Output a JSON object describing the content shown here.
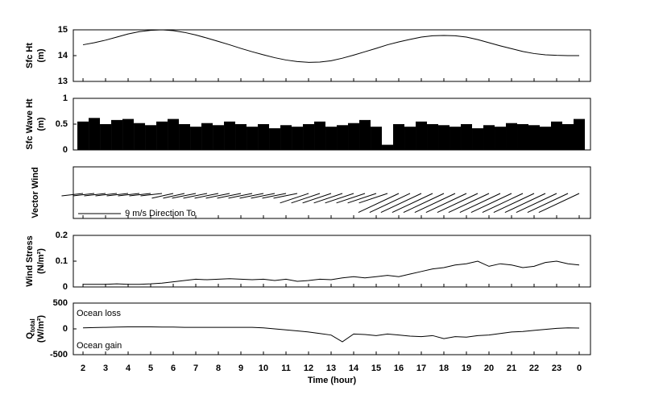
{
  "chart_data": [
    {
      "type": "line",
      "ylabel": "Sfc Ht",
      "ylabel_units": "(m)",
      "color": "#000000",
      "x": [
        2,
        2.5,
        3,
        3.5,
        4,
        4.5,
        5,
        5.5,
        6,
        6.5,
        7,
        7.5,
        8,
        8.5,
        9,
        9.5,
        10,
        10.5,
        11,
        11.5,
        12,
        12.5,
        13,
        13.5,
        14,
        14.5,
        15,
        15.5,
        16,
        16.5,
        17,
        17.5,
        18,
        18.5,
        19,
        19.5,
        20,
        20.5,
        21,
        21.5,
        22,
        22.5,
        23,
        23.5,
        24
      ],
      "values": [
        14.42,
        14.5,
        14.6,
        14.72,
        14.84,
        14.93,
        14.98,
        15.0,
        14.97,
        14.9,
        14.8,
        14.68,
        14.55,
        14.42,
        14.28,
        14.15,
        14.03,
        13.92,
        13.83,
        13.77,
        13.74,
        13.75,
        13.8,
        13.9,
        14.02,
        14.15,
        14.28,
        14.42,
        14.53,
        14.63,
        14.72,
        14.77,
        14.78,
        14.77,
        14.72,
        14.62,
        14.5,
        14.38,
        14.27,
        14.16,
        14.08,
        14.03,
        14.01,
        14.0,
        14.0
      ],
      "xlim": [
        1.57,
        24.5
      ],
      "ylim": [
        13,
        15
      ],
      "yticks": [
        13,
        14,
        15
      ]
    },
    {
      "type": "bar",
      "ylabel": "Sfc Wave Ht",
      "ylabel_units": "(m)",
      "color": "#000000",
      "x": [
        2,
        2.5,
        3,
        3.5,
        4,
        4.5,
        5,
        5.5,
        6,
        6.5,
        7,
        7.5,
        8,
        8.5,
        9,
        9.5,
        10,
        10.5,
        11,
        11.5,
        12,
        12.5,
        13,
        13.5,
        14,
        14.5,
        15,
        15.5,
        16,
        16.5,
        17,
        17.5,
        18,
        18.5,
        19,
        19.5,
        20,
        20.5,
        21,
        21.5,
        22,
        22.5,
        23,
        23.5,
        24
      ],
      "values": [
        0.55,
        0.62,
        0.5,
        0.58,
        0.6,
        0.52,
        0.48,
        0.55,
        0.6,
        0.5,
        0.45,
        0.52,
        0.48,
        0.55,
        0.5,
        0.45,
        0.5,
        0.42,
        0.48,
        0.45,
        0.5,
        0.55,
        0.45,
        0.48,
        0.52,
        0.58,
        0.45,
        0.1,
        0.5,
        0.45,
        0.55,
        0.5,
        0.48,
        0.45,
        0.5,
        0.42,
        0.48,
        0.45,
        0.52,
        0.5,
        0.48,
        0.45,
        0.55,
        0.5,
        0.6
      ],
      "xlim": [
        1.57,
        24.5
      ],
      "ylim": [
        0,
        1
      ],
      "yticks": [
        0,
        0.5,
        1
      ]
    },
    {
      "type": "vector",
      "ylabel": "Vector Wind",
      "color": "#000000",
      "x": [
        2,
        2.5,
        3,
        3.5,
        4,
        4.5,
        5,
        5.5,
        6,
        6.5,
        7,
        7.5,
        8,
        8.5,
        9,
        9.5,
        10,
        10.5,
        11,
        11.5,
        12,
        12.5,
        13,
        13.5,
        14,
        14.5,
        15,
        15.5,
        16,
        16.5,
        17,
        17.5,
        18,
        18.5,
        19,
        19.5,
        20,
        20.5,
        21,
        21.5,
        22,
        22.5,
        23,
        23.5,
        24
      ],
      "u": [
        -4.5,
        -4.5,
        -4.5,
        -4.5,
        -4.5,
        -4.5,
        -4.5,
        -4.5,
        -4.5,
        -4.5,
        -5,
        -5,
        -5,
        -5,
        -5,
        -5,
        -5,
        -5,
        -5,
        -5,
        -6,
        -6,
        -6,
        -6,
        -6,
        -6,
        -6,
        -6,
        -8.5,
        -8.5,
        -8.5,
        -8.5,
        -8.5,
        -8.5,
        -8.5,
        -8.5,
        -8.5,
        -8.5,
        -8.5,
        -8.5,
        -8.5,
        -8.5,
        -8.5,
        -8.5,
        -8.5
      ],
      "v": [
        -0.5,
        -0.5,
        -0.5,
        -0.5,
        -0.5,
        -0.5,
        -0.5,
        -0.5,
        -1,
        -1,
        -1,
        -1,
        -1,
        -1,
        -1,
        -1,
        -1,
        -1,
        -1,
        -1,
        -2,
        -2,
        -2,
        -2,
        -2,
        -2,
        -2,
        -2,
        -4,
        -4,
        -4,
        -4,
        -4,
        -4,
        -4,
        -4,
        -4,
        -4,
        -4,
        -4,
        -4,
        -4,
        -4,
        -4,
        -4
      ],
      "legend": {
        "value": 9,
        "label": "9 m/s  Direction To"
      },
      "xlim": [
        1.57,
        24.5
      ]
    },
    {
      "type": "line",
      "ylabel": "Wind Stress",
      "ylabel_units": "(N/m²)",
      "color": "#000000",
      "x": [
        2,
        2.5,
        3,
        3.5,
        4,
        4.5,
        5,
        5.5,
        6,
        6.5,
        7,
        7.5,
        8,
        8.5,
        9,
        9.5,
        10,
        10.5,
        11,
        11.5,
        12,
        12.5,
        13,
        13.5,
        14,
        14.5,
        15,
        15.5,
        16,
        16.5,
        17,
        17.5,
        18,
        18.5,
        19,
        19.5,
        20,
        20.5,
        21,
        21.5,
        22,
        22.5,
        23,
        23.5,
        24
      ],
      "values": [
        0.01,
        0.01,
        0.01,
        0.012,
        0.01,
        0.01,
        0.012,
        0.015,
        0.02,
        0.025,
        0.03,
        0.028,
        0.03,
        0.032,
        0.03,
        0.028,
        0.03,
        0.025,
        0.03,
        0.022,
        0.025,
        0.03,
        0.028,
        0.035,
        0.04,
        0.035,
        0.04,
        0.045,
        0.04,
        0.05,
        0.06,
        0.07,
        0.075,
        0.085,
        0.09,
        0.1,
        0.08,
        0.09,
        0.085,
        0.075,
        0.08,
        0.095,
        0.1,
        0.09,
        0.085
      ],
      "xlim": [
        1.57,
        24.5
      ],
      "ylim": [
        0,
        0.2
      ],
      "yticks": [
        0,
        0.1,
        0.2
      ]
    },
    {
      "type": "line",
      "ylabel": "Q",
      "ylabel_subscript": "total",
      "ylabel_units": "(W/m²)",
      "color": "#000000",
      "annotations": [
        "Ocean loss",
        "Ocean gain"
      ],
      "x": [
        2,
        2.5,
        3,
        3.5,
        4,
        4.5,
        5,
        5.5,
        6,
        6.5,
        7,
        7.5,
        8,
        8.5,
        9,
        9.5,
        10,
        10.5,
        11,
        11.5,
        12,
        12.5,
        13,
        13.5,
        14,
        14.5,
        15,
        15.5,
        16,
        16.5,
        17,
        17.5,
        18,
        18.5,
        19,
        19.5,
        20,
        20.5,
        21,
        21.5,
        22,
        22.5,
        23,
        23.5,
        24
      ],
      "values": [
        20,
        25,
        30,
        35,
        40,
        40,
        40,
        35,
        35,
        30,
        30,
        30,
        30,
        30,
        30,
        30,
        20,
        0,
        -20,
        -40,
        -60,
        -90,
        -120,
        -250,
        -100,
        -110,
        -130,
        -100,
        -120,
        -140,
        -150,
        -130,
        -190,
        -150,
        -160,
        -130,
        -120,
        -90,
        -60,
        -50,
        -30,
        -10,
        10,
        20,
        15
      ],
      "xlim": [
        1.57,
        24.5
      ],
      "ylim": [
        -500,
        500
      ],
      "yticks": [
        -500,
        0,
        500
      ],
      "xlabel": "Time (hour)",
      "xticks": [
        2,
        3,
        4,
        5,
        6,
        7,
        8,
        9,
        10,
        11,
        12,
        13,
        14,
        15,
        16,
        17,
        18,
        19,
        20,
        21,
        22,
        23,
        {
          "value": 24,
          "label": "0"
        }
      ]
    }
  ]
}
